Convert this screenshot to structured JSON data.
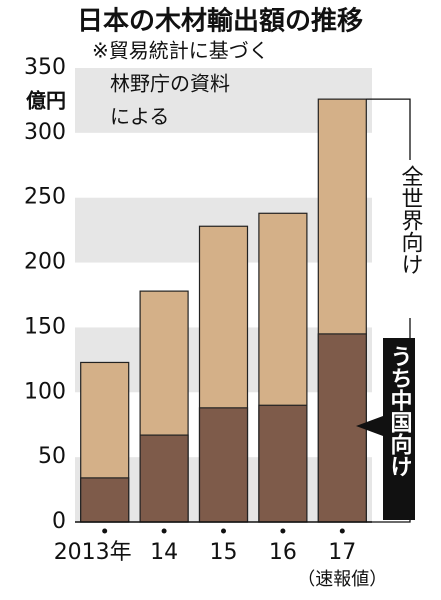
{
  "chart_data": {
    "type": "bar",
    "overlay": true,
    "title": "日本の木材輸出額の推移",
    "note": [
      "※貿易統計に基づく",
      "林野庁の資料",
      "による"
    ],
    "y_unit": "億円",
    "categories": [
      "2013年",
      "14",
      "15",
      "16",
      "17"
    ],
    "category_note": "（速報値）",
    "series": [
      {
        "name": "全世界向け",
        "color": "#d4b088",
        "values": [
          123,
          178,
          228,
          238,
          326
        ]
      },
      {
        "name": "うち中国向け",
        "color": "#7e5b4a",
        "values": [
          34,
          67,
          88,
          90,
          145
        ]
      }
    ],
    "ylim": [
      0,
      350
    ],
    "yticks": [
      0,
      50,
      100,
      150,
      200,
      250,
      300,
      350
    ],
    "grid": "bands",
    "band_color": "#e6e6e6"
  }
}
